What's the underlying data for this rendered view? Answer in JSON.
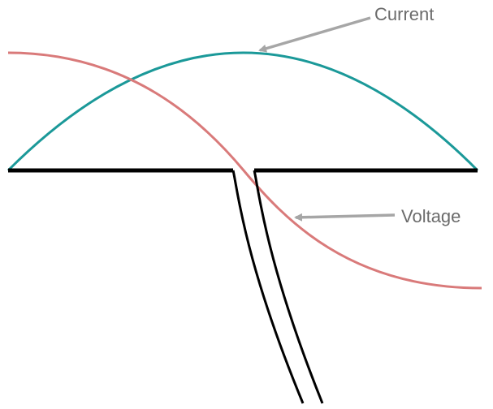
{
  "diagram": {
    "description_labels": {
      "current": "Current",
      "voltage": "Voltage"
    },
    "colors": {
      "current_wave": "#1b9999",
      "voltage_wave": "#d97a7a",
      "antenna": "#000000",
      "arrow": "#a6a6a6",
      "label_text": "#6b6b6b"
    },
    "elements": {
      "antenna": "dipole-antenna",
      "feedline": "two-wire-transmission-line",
      "current_curve": "current-distribution",
      "voltage_curve": "voltage-distribution"
    }
  }
}
